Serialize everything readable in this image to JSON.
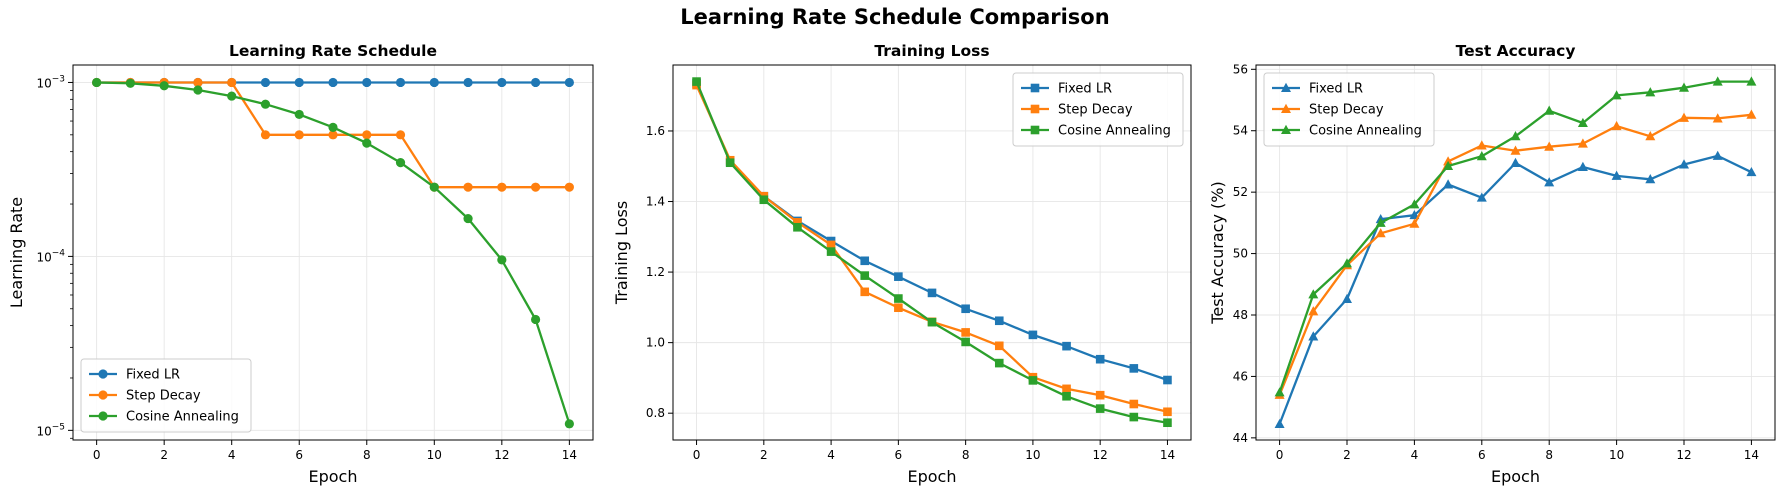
{
  "figure": {
    "suptitle": "Learning Rate Schedule Comparison",
    "colors": {
      "fixed": "#1f77b4",
      "step": "#ff7f0e",
      "cosine": "#2ca02c"
    }
  },
  "chart_data": [
    {
      "type": "line",
      "title": "Learning Rate Schedule",
      "xlabel": "Epoch",
      "ylabel": "Learning Rate",
      "yscale": "log",
      "xlim": [
        -0.7,
        14.7
      ],
      "ylim": [
        8.8e-06,
        0.00126
      ],
      "grid": true,
      "legend_position": "lower-left",
      "marker": "circle",
      "x": [
        0,
        1,
        2,
        3,
        4,
        5,
        6,
        7,
        8,
        9,
        10,
        11,
        12,
        13,
        14
      ],
      "xticks": [
        0,
        2,
        4,
        6,
        8,
        10,
        12,
        14
      ],
      "xtick_labels": [
        "0",
        "2",
        "4",
        "6",
        "8",
        "10",
        "12",
        "14"
      ],
      "yticks": [
        1e-05,
        0.0001,
        0.001
      ],
      "ytick_labels": [
        {
          "base": "10",
          "exp": "−5"
        },
        {
          "base": "10",
          "exp": "−4"
        },
        {
          "base": "10",
          "exp": "−3"
        }
      ],
      "series": [
        {
          "name": "Fixed LR",
          "color": "#1f77b4",
          "values": [
            0.001,
            0.001,
            0.001,
            0.001,
            0.001,
            0.001,
            0.001,
            0.001,
            0.001,
            0.001,
            0.001,
            0.001,
            0.001,
            0.001,
            0.001
          ]
        },
        {
          "name": "Step Decay",
          "color": "#ff7f0e",
          "values": [
            0.001,
            0.001,
            0.001,
            0.001,
            0.001,
            0.0005,
            0.0005,
            0.0005,
            0.0005,
            0.0005,
            0.00025,
            0.00025,
            0.00025,
            0.00025,
            0.00025
          ]
        },
        {
          "name": "Cosine Annealing",
          "color": "#2ca02c",
          "values": [
            0.001,
            0.000989,
            0.000957,
            0.000905,
            0.000835,
            0.00075,
            0.000655,
            0.000552,
            0.000448,
            0.000346,
            0.00025,
            0.000165,
            9.55e-05,
            4.34e-05,
            1.09e-05
          ]
        }
      ]
    },
    {
      "type": "line",
      "title": "Training Loss",
      "xlabel": "Epoch",
      "ylabel": "Training Loss",
      "yscale": "linear",
      "xlim": [
        -0.7,
        14.7
      ],
      "ylim": [
        0.724,
        1.787
      ],
      "grid": true,
      "legend_position": "upper-right",
      "marker": "square",
      "x": [
        0,
        1,
        2,
        3,
        4,
        5,
        6,
        7,
        8,
        9,
        10,
        11,
        12,
        13,
        14
      ],
      "xticks": [
        0,
        2,
        4,
        6,
        8,
        10,
        12,
        14
      ],
      "xtick_labels": [
        "0",
        "2",
        "4",
        "6",
        "8",
        "10",
        "12",
        "14"
      ],
      "yticks": [
        0.8,
        1.0,
        1.2,
        1.4,
        1.6
      ],
      "ytick_labels": [
        "0.8",
        "1.0",
        "1.2",
        "1.4",
        "1.6"
      ],
      "series": [
        {
          "name": "Fixed LR",
          "color": "#1f77b4",
          "values": [
            1.735,
            1.512,
            1.415,
            1.345,
            1.288,
            1.232,
            1.187,
            1.141,
            1.096,
            1.062,
            1.022,
            0.99,
            0.953,
            0.927,
            0.894
          ]
        },
        {
          "name": "Step Decay",
          "color": "#ff7f0e",
          "values": [
            1.73,
            1.517,
            1.415,
            1.341,
            1.277,
            1.144,
            1.099,
            1.059,
            1.029,
            0.991,
            0.902,
            0.869,
            0.851,
            0.826,
            0.804
          ]
        },
        {
          "name": "Cosine Annealing",
          "color": "#2ca02c",
          "values": [
            1.74,
            1.51,
            1.405,
            1.327,
            1.258,
            1.19,
            1.125,
            1.058,
            1.002,
            0.942,
            0.893,
            0.848,
            0.813,
            0.789,
            0.773
          ]
        }
      ]
    },
    {
      "type": "line",
      "title": "Test Accuracy",
      "xlabel": "Epoch",
      "ylabel": "Test Accuracy (%)",
      "yscale": "linear",
      "xlim": [
        -0.7,
        14.7
      ],
      "ylim": [
        43.93,
        56.14
      ],
      "grid": true,
      "legend_position": "upper-left",
      "marker": "triangle",
      "x": [
        0,
        1,
        2,
        3,
        4,
        5,
        6,
        7,
        8,
        9,
        10,
        11,
        12,
        13,
        14
      ],
      "xticks": [
        0,
        2,
        4,
        6,
        8,
        10,
        12,
        14
      ],
      "xtick_labels": [
        "0",
        "2",
        "4",
        "6",
        "8",
        "10",
        "12",
        "14"
      ],
      "yticks": [
        44,
        46,
        48,
        50,
        52,
        54,
        56
      ],
      "ytick_labels": [
        "44",
        "46",
        "48",
        "50",
        "52",
        "54",
        "56"
      ],
      "series": [
        {
          "name": "Fixed LR",
          "color": "#1f77b4",
          "values": [
            44.45,
            47.3,
            48.52,
            51.12,
            51.25,
            52.25,
            51.82,
            52.95,
            52.32,
            52.82,
            52.53,
            52.42,
            52.9,
            53.18,
            52.65
          ]
        },
        {
          "name": "Step Decay",
          "color": "#ff7f0e",
          "values": [
            45.4,
            48.12,
            49.62,
            50.66,
            50.97,
            53.0,
            53.52,
            53.35,
            53.48,
            53.58,
            54.15,
            53.82,
            54.42,
            54.4,
            54.52
          ]
        },
        {
          "name": "Cosine Annealing",
          "color": "#2ca02c",
          "values": [
            45.48,
            48.67,
            49.68,
            51.0,
            51.6,
            52.85,
            53.17,
            53.82,
            54.65,
            54.25,
            55.15,
            55.25,
            55.4,
            55.6,
            55.6
          ]
        }
      ]
    }
  ]
}
